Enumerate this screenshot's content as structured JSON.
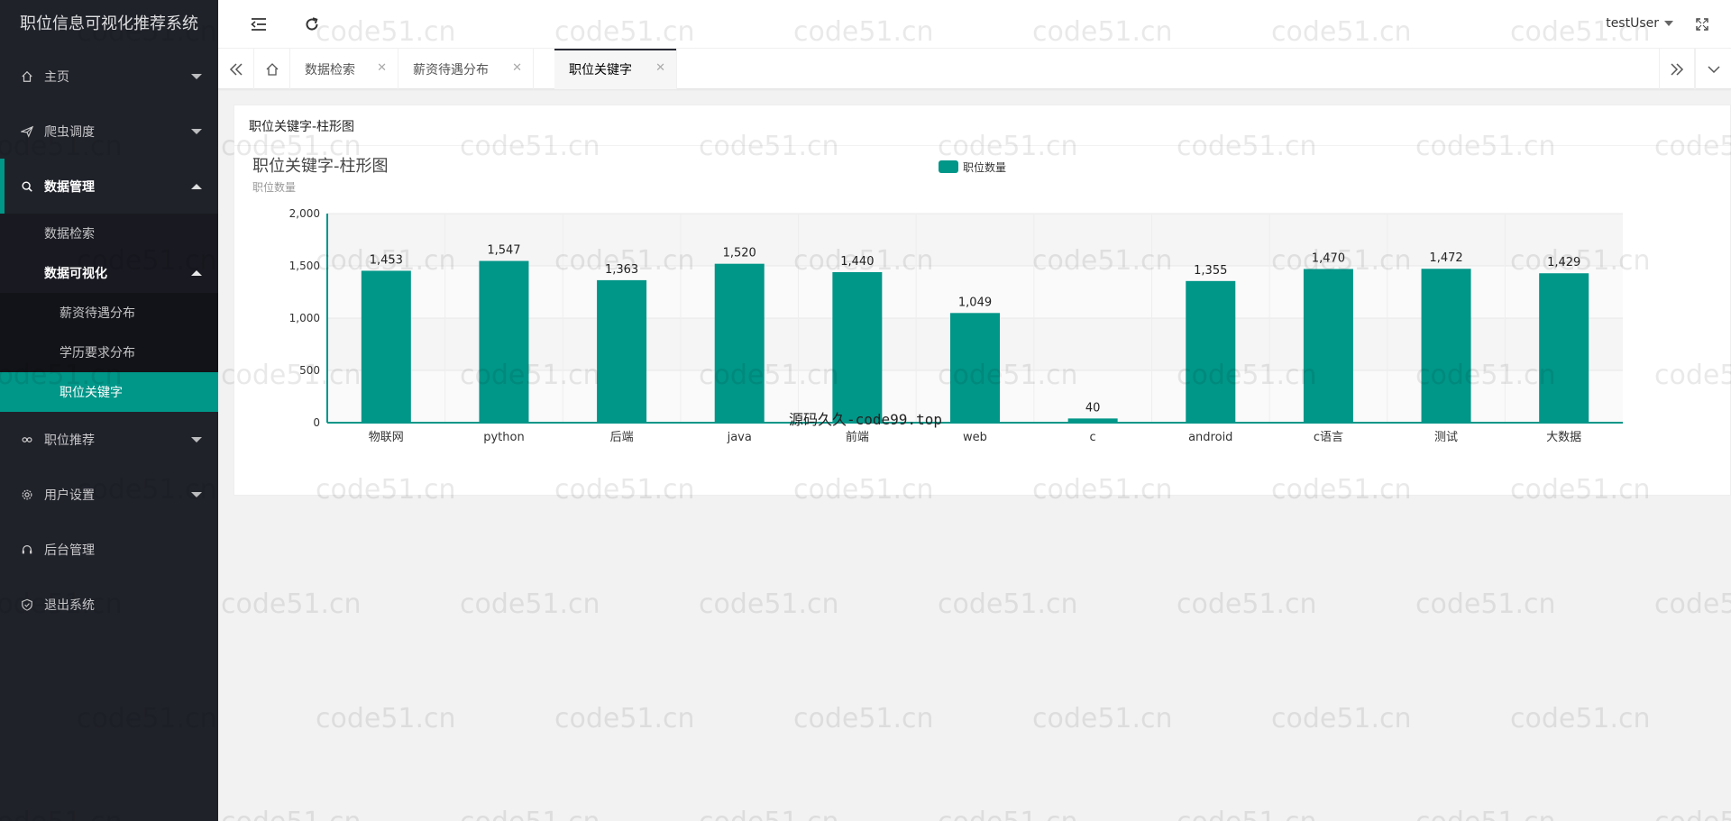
{
  "app": {
    "title": "职位信息可视化推荐系统"
  },
  "sidebar": {
    "items": [
      {
        "label": "主页",
        "icon": "home-icon"
      },
      {
        "label": "爬虫调度",
        "icon": "send-icon"
      },
      {
        "label": "数据管理",
        "icon": "search-icon"
      }
    ],
    "data_sub": {
      "search": "数据检索",
      "viz": "数据可视化"
    },
    "viz_sub": [
      "薪资待遇分布",
      "学历要求分布",
      "职位关键字"
    ],
    "items_after": [
      {
        "label": "职位推荐",
        "icon": "link-icon"
      },
      {
        "label": "用户设置",
        "icon": "gear-icon"
      },
      {
        "label": "后台管理",
        "icon": "headset-icon"
      },
      {
        "label": "退出系统",
        "icon": "shield-icon"
      }
    ]
  },
  "header": {
    "user": "testUser"
  },
  "tabs": [
    "数据检索",
    "薪资待遇分布",
    "职位关键字"
  ],
  "card": {
    "title": "职位关键字-柱形图"
  },
  "colors": {
    "accent": "#009688",
    "sidebar_bg": "#20222a"
  },
  "watermark": {
    "text": "code51.cn",
    "bottom_text": "源码久久-code99.top"
  },
  "chart_data": {
    "type": "bar",
    "title": "职位关键字-柱形图",
    "ylabel": "职位数量",
    "legend": "职位数量",
    "categories": [
      "物联网",
      "python",
      "后端",
      "java",
      "前端",
      "web",
      "c",
      "android",
      "c语言",
      "测试",
      "大数据"
    ],
    "values": [
      1453,
      1547,
      1363,
      1520,
      1440,
      1049,
      40,
      1355,
      1470,
      1472,
      1429
    ],
    "yticks": [
      "0",
      "500",
      "1,000",
      "1,500",
      "2,000"
    ],
    "ylim": [
      0,
      2000
    ],
    "color": "#009688"
  }
}
